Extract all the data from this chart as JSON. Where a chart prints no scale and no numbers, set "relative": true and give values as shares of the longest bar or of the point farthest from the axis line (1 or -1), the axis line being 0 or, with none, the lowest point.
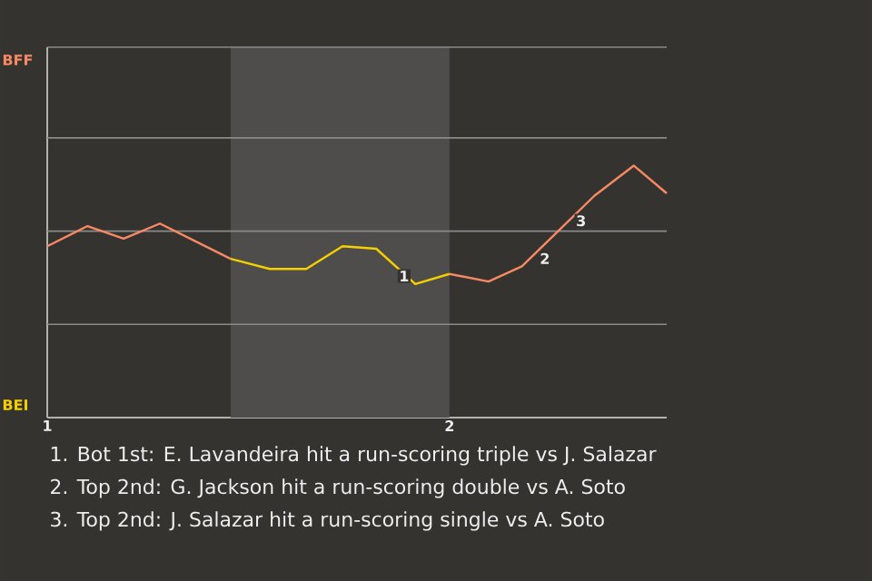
{
  "chart_data": {
    "type": "line",
    "relative": true,
    "marker": "none",
    "line_style": "solid",
    "ref_lines": [
      {
        "axis": "y",
        "value": 0.37,
        "color": "#8a8a8a"
      },
      {
        "axis": "y",
        "value": 0.74,
        "color": "#8a8a8a"
      },
      {
        "axis": "y",
        "value": 1.11,
        "color": "#8a8a8a"
      },
      {
        "axis": "y",
        "value": 1.47,
        "color": "#8a8a8a"
      }
    ],
    "xlim": [
      1,
      2.54
    ],
    "xticks": [
      1,
      2
    ],
    "series": [
      {
        "color": "#f78a64",
        "x": [
          1.0,
          1.1,
          1.19,
          1.28,
          1.456
        ],
        "values": [
          0.68,
          0.76,
          0.71,
          0.77,
          0.63
        ]
      },
      {
        "color": "#f5d000",
        "x": [
          1.456,
          1.553,
          1.644,
          1.734,
          1.818,
          1.915,
          2.0
        ],
        "values": [
          0.63,
          0.59,
          0.59,
          0.68,
          0.67,
          0.53,
          0.57
        ]
      },
      {
        "color": "#f78a64",
        "x": [
          2.0,
          2.097,
          2.18,
          2.27,
          2.36,
          2.458,
          2.54
        ],
        "values": [
          0.57,
          0.54,
          0.6,
          0.74,
          0.88,
          1,
          0.89
        ]
      }
    ],
    "bands": [
      {
        "axis": "x",
        "from": 1.456,
        "to": 2.0,
        "color": "#4e4d4b"
      }
    ],
    "annotations": [
      "BFF",
      "BEI",
      {
        "text": "1",
        "x": 1.87,
        "y": 0.59
      },
      {
        "text": "2",
        "x": 2.22,
        "y": 0.66
      },
      {
        "text": "3",
        "x": 2.31,
        "y": 0.81
      },
      "1. Bot 1st: E. Lavandeira hit a run-scoring triple vs J. Salazar",
      "2. Top 2nd: G. Jackson hit a run-scoring double vs A. Soto",
      "3. Top 2nd: J. Salazar hit a run-scoring single vs A. Soto"
    ]
  }
}
